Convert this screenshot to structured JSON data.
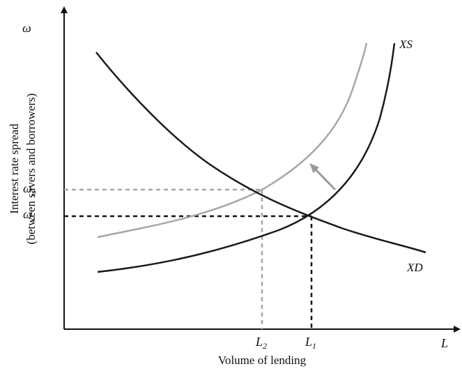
{
  "axes": {
    "y_symbol": "ω",
    "x_symbol": "L",
    "y_title_line1": "Interest rate spread",
    "y_title_line2": "(between savers and borrowers)",
    "x_title": "Volume of lending"
  },
  "curves": {
    "xs_label": "XS",
    "xd_label": "XD",
    "xs_color": "#1a1a1a",
    "xs_shifted_color": "#a6a6a6",
    "xd_color": "#1a1a1a"
  },
  "ticks": {
    "omega1_base": "ω",
    "omega1_sub": "1",
    "omega2_base": "ω",
    "omega2_sub": "2",
    "l1_base": "L",
    "l1_sub": "1",
    "l2_base": "L",
    "l2_sub": "2"
  },
  "colors": {
    "dark": "#1a1a1a",
    "gray": "#a6a6a6",
    "arrow": "#9a9a9a"
  }
}
